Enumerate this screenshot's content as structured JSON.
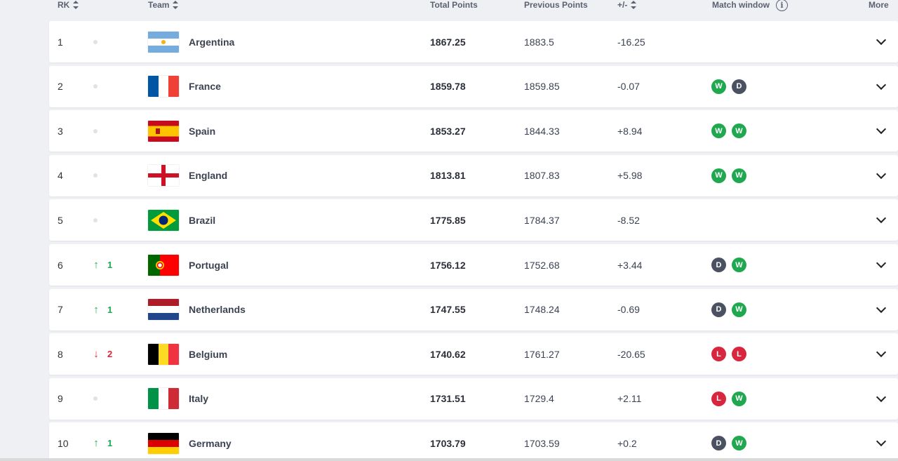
{
  "header": {
    "rk": "RK",
    "team": "Team",
    "total": "Total Points",
    "previous": "Previous Points",
    "diff": "+/-",
    "window": "Match window",
    "more": "More"
  },
  "colors": {
    "win": "#1fa84f",
    "draw": "#4b5160",
    "loss": "#d7263d",
    "up": "#1fa84f",
    "down": "#d7263d"
  },
  "rows": [
    {
      "rank": "1",
      "move": "none",
      "move_value": "",
      "team": "Argentina",
      "flag": "argentina",
      "total": "1867.25",
      "previous": "1883.5",
      "diff": "-16.25",
      "window": []
    },
    {
      "rank": "2",
      "move": "none",
      "move_value": "",
      "team": "France",
      "flag": "france",
      "total": "1859.78",
      "previous": "1859.85",
      "diff": "-0.07",
      "window": [
        "W",
        "D"
      ]
    },
    {
      "rank": "3",
      "move": "none",
      "move_value": "",
      "team": "Spain",
      "flag": "spain",
      "total": "1853.27",
      "previous": "1844.33",
      "diff": "+8.94",
      "window": [
        "W",
        "W"
      ]
    },
    {
      "rank": "4",
      "move": "none",
      "move_value": "",
      "team": "England",
      "flag": "england",
      "total": "1813.81",
      "previous": "1807.83",
      "diff": "+5.98",
      "window": [
        "W",
        "W"
      ]
    },
    {
      "rank": "5",
      "move": "none",
      "move_value": "",
      "team": "Brazil",
      "flag": "brazil",
      "total": "1775.85",
      "previous": "1784.37",
      "diff": "-8.52",
      "window": []
    },
    {
      "rank": "6",
      "move": "up",
      "move_value": "1",
      "team": "Portugal",
      "flag": "portugal",
      "total": "1756.12",
      "previous": "1752.68",
      "diff": "+3.44",
      "window": [
        "D",
        "W"
      ]
    },
    {
      "rank": "7",
      "move": "up",
      "move_value": "1",
      "team": "Netherlands",
      "flag": "netherlands",
      "total": "1747.55",
      "previous": "1748.24",
      "diff": "-0.69",
      "window": [
        "D",
        "W"
      ]
    },
    {
      "rank": "8",
      "move": "down",
      "move_value": "2",
      "team": "Belgium",
      "flag": "belgium",
      "total": "1740.62",
      "previous": "1761.27",
      "diff": "-20.65",
      "window": [
        "L",
        "L"
      ]
    },
    {
      "rank": "9",
      "move": "none",
      "move_value": "",
      "team": "Italy",
      "flag": "italy",
      "total": "1731.51",
      "previous": "1729.4",
      "diff": "+2.11",
      "window": [
        "L",
        "W"
      ]
    },
    {
      "rank": "10",
      "move": "up",
      "move_value": "1",
      "team": "Germany",
      "flag": "germany",
      "total": "1703.79",
      "previous": "1703.59",
      "diff": "+0.2",
      "window": [
        "D",
        "W"
      ]
    }
  ]
}
